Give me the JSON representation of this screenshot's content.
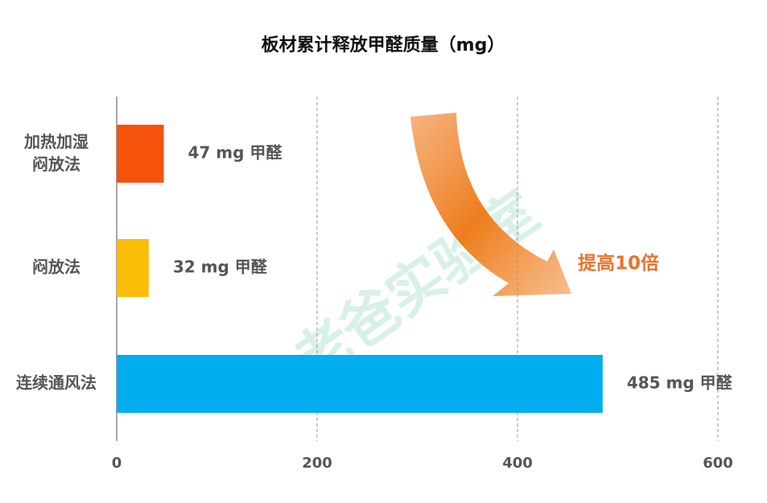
{
  "chart_data": {
    "type": "bar",
    "title": "板材累计释放甲醛质量（mg）",
    "categories": [
      "加热加湿\n闷放法",
      "闷放法",
      "连续通风法"
    ],
    "values": [
      47,
      32,
      485
    ],
    "value_labels": [
      "47 mg 甲醛",
      "32 mg 甲醛",
      "485 mg 甲醛"
    ],
    "colors": [
      "#f5520c",
      "#fbbd08",
      "#00aeef"
    ],
    "xlim": [
      0,
      600
    ],
    "xticks": [
      0,
      200,
      400,
      600
    ],
    "grid": true,
    "annotation": "提高10倍",
    "annotation_color": "#e9742b",
    "watermark": "老爸实验室"
  }
}
